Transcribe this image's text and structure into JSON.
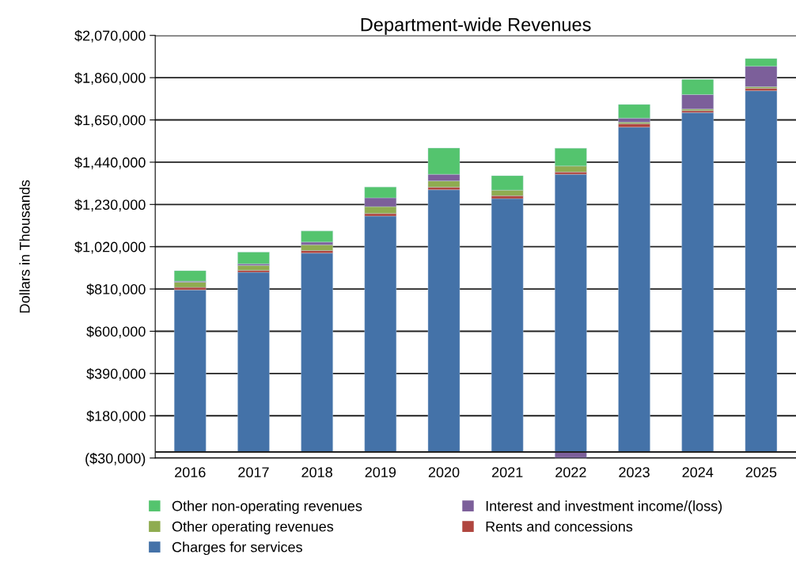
{
  "chart_data": {
    "type": "bar",
    "title": "Department-wide Revenues",
    "ylabel": "Dollars in Thousands",
    "stacked": true,
    "grid": "y",
    "legend": "bottom",
    "categories": [
      "2016",
      "2017",
      "2018",
      "2019",
      "2020",
      "2021",
      "2022",
      "2023",
      "2024",
      "2025"
    ],
    "series": [
      {
        "name": "Charges for services",
        "color": "#4472a8",
        "values": [
          805000,
          893000,
          988000,
          1172000,
          1303000,
          1259000,
          1380000,
          1614000,
          1686000,
          1795000
        ]
      },
      {
        "name": "Rents and concessions",
        "color": "#b0463f",
        "values": [
          13000,
          10000,
          13000,
          13000,
          13000,
          14000,
          11000,
          17000,
          10000,
          12000
        ]
      },
      {
        "name": "Other operating revenues",
        "color": "#8fac50",
        "values": [
          26000,
          24000,
          29000,
          34000,
          31000,
          28000,
          30000,
          8000,
          8000,
          8000
        ]
      },
      {
        "name": "Interest and investment income/(loss)",
        "color": "#7c5f9a",
        "values": [
          5000,
          8000,
          13000,
          44000,
          33000,
          null,
          -28000,
          20000,
          72000,
          102000
        ]
      },
      {
        "name": "Other non-operating revenues",
        "color": "#54c46e",
        "values": [
          52000,
          58000,
          55000,
          54000,
          130000,
          72000,
          88000,
          68000,
          76000,
          38000
        ]
      }
    ],
    "ylim": [
      -30000,
      2070000
    ],
    "yticks": [
      {
        "value": -30000,
        "label": "($30,000)"
      },
      {
        "value": 180000,
        "label": "$180,000"
      },
      {
        "value": 390000,
        "label": "$390,000"
      },
      {
        "value": 600000,
        "label": "$600,000"
      },
      {
        "value": 810000,
        "label": "$810,000"
      },
      {
        "value": 1020000,
        "label": "$1,020,000"
      },
      {
        "value": 1230000,
        "label": "$1,230,000"
      },
      {
        "value": 1440000,
        "label": "$1,440,000"
      },
      {
        "value": 1650000,
        "label": "$1,650,000"
      },
      {
        "value": 1860000,
        "label": "$1,860,000"
      },
      {
        "value": 2070000,
        "label": "$2,070,000"
      }
    ]
  }
}
